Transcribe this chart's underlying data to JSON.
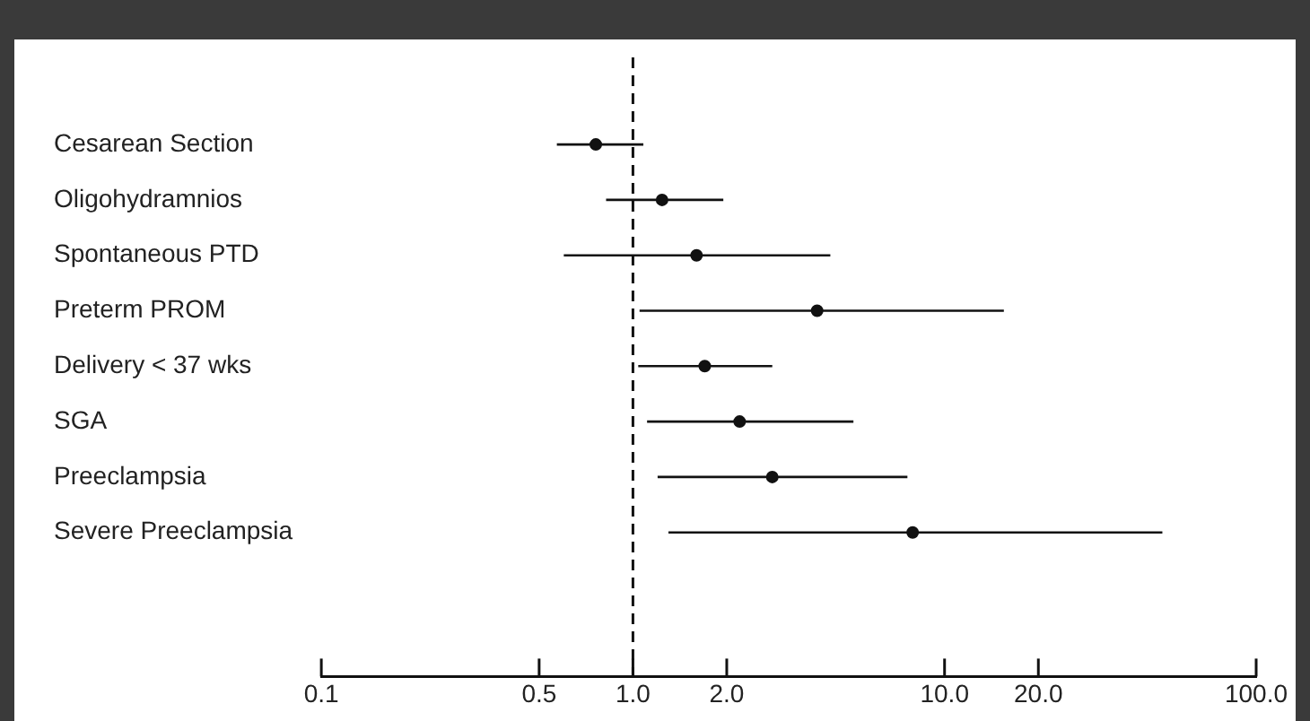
{
  "chart_data": {
    "type": "scatter",
    "orientation": "horizontal",
    "categories": [
      "Cesarean Section",
      "Oligohydramnios",
      "Spontaneous PTD",
      "Preterm PROM",
      "Delivery < 37 wks",
      "SGA",
      "Preeclampsia",
      "Severe Preeclampsia"
    ],
    "values": [
      0.76,
      1.24,
      1.6,
      3.9,
      1.7,
      2.2,
      2.8,
      7.9
    ],
    "errors": [
      [
        0.57,
        1.08
      ],
      [
        0.82,
        1.95
      ],
      [
        0.6,
        4.3
      ],
      [
        1.05,
        15.5
      ],
      [
        1.04,
        2.8
      ],
      [
        1.11,
        5.1
      ],
      [
        1.2,
        7.6
      ],
      [
        1.3,
        50
      ]
    ],
    "color": "#111111",
    "marker": "circle",
    "log": "x",
    "xlim": [
      0.1,
      100
    ],
    "xticks": [
      0.1,
      0.5,
      {
        "value": 1,
        "label": "1.0"
      },
      {
        "value": 2,
        "label": "2.0"
      },
      {
        "value": 10,
        "label": "10.0"
      },
      {
        "value": 20,
        "label": "20.0"
      },
      {
        "value": 100,
        "label": "100.0"
      }
    ],
    "ref_lines": [
      {
        "axis": "x",
        "value": 1,
        "label": null,
        "line_style": "dashed"
      }
    ],
    "grid": false,
    "legend": false
  }
}
